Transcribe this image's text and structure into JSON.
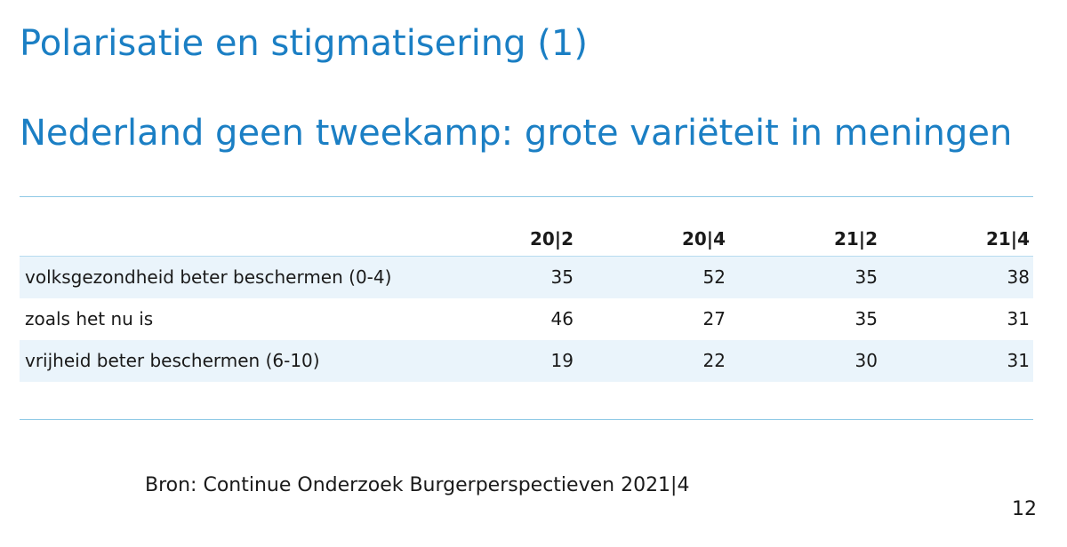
{
  "slide": {
    "title": "Polarisatie en stigmatisering (1)",
    "subtitle": "Nederland geen tweekamp: grote variëteit in meningen",
    "source": "Bron: Continue Onderzoek Burgerperspectieven 2021|4",
    "page_number": "12"
  },
  "colors": {
    "title": "#1b7fc4",
    "rule": "#8ec9e6",
    "row_shade": "#eaf4fb"
  },
  "table": {
    "columns": [
      "",
      "20|2",
      "20|4",
      "21|2",
      "21|4"
    ],
    "rows": [
      {
        "label": "volksgezondheid beter beschermen (0-4)",
        "values": [
          "35",
          "52",
          "35",
          "38"
        ]
      },
      {
        "label": "zoals het nu is",
        "values": [
          "46",
          "27",
          "35",
          "31"
        ]
      },
      {
        "label": "vrijheid beter beschermen (6-10)",
        "values": [
          "19",
          "22",
          "30",
          "31"
        ]
      }
    ]
  }
}
